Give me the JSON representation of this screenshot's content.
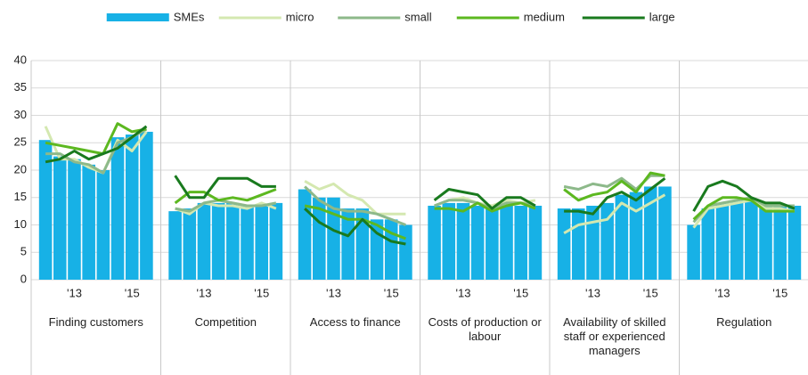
{
  "chart_data": {
    "type": "panel-bar-line",
    "ylim": [
      0,
      40
    ],
    "yticks": [
      0,
      5,
      10,
      15,
      20,
      25,
      30,
      35,
      40
    ],
    "grid": true,
    "groups": [
      "Finding customers",
      "Competition",
      "Access to finance",
      "Costs of production or labour",
      "Availability of skilled staff or experienced managers",
      "Regulation"
    ],
    "categories": [
      null,
      null,
      "'13",
      null,
      null,
      null,
      "'15",
      null,
      null,
      null,
      "'13",
      null,
      null,
      null,
      "'15",
      null,
      null,
      null,
      "'13",
      null,
      null,
      null,
      "'15",
      null,
      null,
      null,
      "'13",
      null,
      null,
      null,
      "'15",
      null,
      null,
      null,
      "'13",
      null,
      null,
      null,
      "'15",
      null,
      null,
      null,
      "'13",
      null,
      null,
      null,
      "'15",
      null
    ],
    "series": [
      {
        "name": "SMEs",
        "mark": "bar",
        "color": "#17b1e6",
        "values": [
          25.5,
          22.5,
          22,
          21,
          20,
          26,
          26.5,
          27,
          12.5,
          13,
          14,
          14,
          14,
          13.5,
          13.5,
          14,
          16.5,
          15,
          15,
          13,
          13,
          11,
          11,
          10,
          13.5,
          14,
          14,
          13.5,
          13.5,
          13.5,
          13.5,
          13.5,
          13,
          13,
          13.5,
          14,
          15.5,
          16,
          17,
          17,
          10,
          13,
          14,
          14.5,
          14.5,
          13.5,
          13.5,
          13.5
        ]
      },
      {
        "name": "micro",
        "mark": "line",
        "color": "#d4e8b0",
        "values": [
          28,
          22,
          22,
          20.5,
          19.5,
          25.5,
          23.5,
          27,
          13,
          12,
          14,
          13.5,
          13.5,
          13,
          14,
          13,
          18,
          16.5,
          17.5,
          15.5,
          14.5,
          12,
          12,
          12,
          13.5,
          14.5,
          15,
          14,
          13.5,
          14.5,
          14,
          14.5,
          8.5,
          10,
          10.5,
          11,
          14,
          12.5,
          14,
          15.5,
          9.5,
          13,
          13.5,
          14,
          14.5,
          13,
          13,
          12.5
        ]
      },
      {
        "name": "small",
        "mark": "line",
        "color": "#8db98a",
        "values": [
          23,
          23,
          21.5,
          21,
          19.5,
          25,
          26,
          27.5,
          13,
          12.5,
          14,
          14.5,
          14,
          13.5,
          13.5,
          14,
          17,
          14.5,
          13,
          12.5,
          12.5,
          12,
          11,
          10,
          13.5,
          14.5,
          14.5,
          14,
          13,
          14,
          14,
          13.5,
          17,
          16.5,
          17.5,
          17,
          18.5,
          16.5,
          19,
          19,
          10.5,
          13.5,
          14,
          14.5,
          15,
          13.5,
          13.5,
          13.5
        ]
      },
      {
        "name": "medium",
        "mark": "line",
        "color": "#5cb820",
        "values": [
          25,
          24.5,
          24,
          23.5,
          23,
          28.5,
          27,
          27.5,
          14,
          16,
          16,
          14.5,
          15,
          14.5,
          15.5,
          16.5,
          13.5,
          13,
          12,
          11,
          11,
          10,
          8.5,
          7.5,
          13,
          13,
          12.5,
          14,
          12.5,
          13.5,
          14,
          13,
          16.5,
          14.5,
          15.5,
          16,
          18,
          16,
          19.5,
          19,
          11,
          13.5,
          15,
          15,
          14.5,
          12.5,
          12.5,
          12.5
        ]
      },
      {
        "name": "large",
        "mark": "line",
        "color": "#197a1e",
        "values": [
          21.5,
          22,
          23.5,
          22,
          23,
          24,
          26,
          28,
          19,
          15,
          15,
          18.5,
          18.5,
          18.5,
          17,
          17,
          13,
          10.5,
          9,
          8,
          11,
          8.5,
          7,
          6.5,
          14.5,
          16.5,
          16,
          15.5,
          13,
          15,
          15,
          13.5,
          12.5,
          12.5,
          12,
          15,
          16,
          14.5,
          16.5,
          18.5,
          12.5,
          17,
          18,
          17,
          15,
          14,
          14,
          13
        ]
      }
    ]
  }
}
